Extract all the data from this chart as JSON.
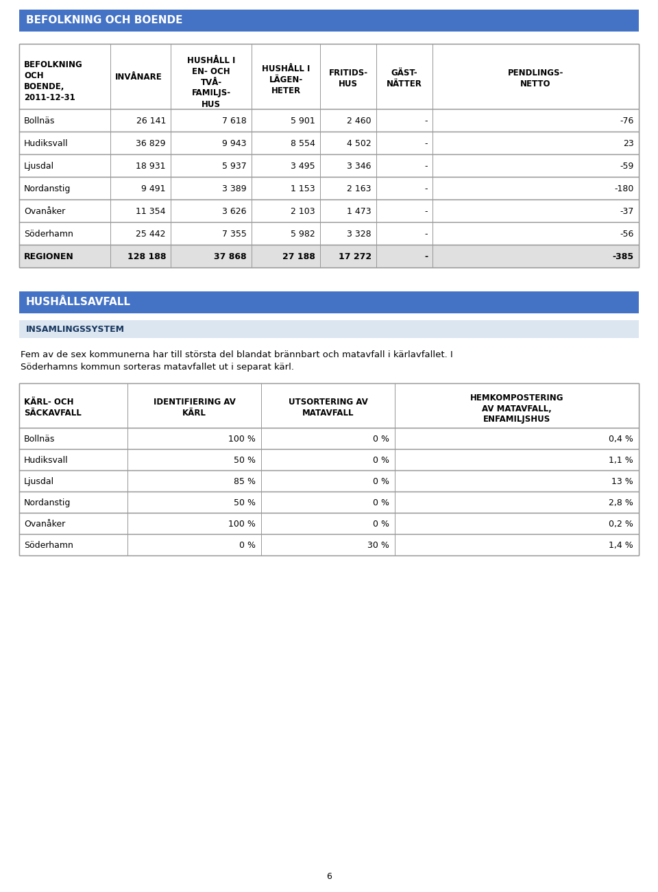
{
  "page_bg": "#ffffff",
  "header1_bg": "#4472c4",
  "header1_text": "BEFOLKNING OCH BOENDE",
  "header1_text_color": "#ffffff",
  "header2_bg": "#4472c4",
  "header2_text": "HUSHÅLLSAVFALL",
  "header2_text_color": "#ffffff",
  "subheader_bg": "#dce6f1",
  "subheader_text": "INSAMLINGSSYSTEM",
  "subheader_text_color": "#17375e",
  "table1_col_headers": [
    "BEFOLKNING\nOCH\nBOENDE,\n2011-12-31",
    "INVÅNARE",
    "HUSHÅLL I\nEN- OCH\nTVÅ-\nFAMILJS-\nHUS",
    "HUSHÅLL I\nLÄGEN-\nHETER",
    "FRITIDS-\nHUS",
    "GÄST-\nNÄTTER",
    "PENDLINGS-\nNETTO"
  ],
  "table1_rows": [
    [
      "Bollnäs",
      "26 141",
      "7 618",
      "5 901",
      "2 460",
      "-",
      "-76"
    ],
    [
      "Hudiksvall",
      "36 829",
      "9 943",
      "8 554",
      "4 502",
      "-",
      "23"
    ],
    [
      "Ljusdal",
      "18 931",
      "5 937",
      "3 495",
      "3 346",
      "-",
      "-59"
    ],
    [
      "Nordanstig",
      "9 491",
      "3 389",
      "1 153",
      "2 163",
      "-",
      "-180"
    ],
    [
      "Ovanåker",
      "11 354",
      "3 626",
      "2 103",
      "1 473",
      "-",
      "-37"
    ],
    [
      "Söderhamn",
      "25 442",
      "7 355",
      "5 982",
      "3 328",
      "-",
      "-56"
    ],
    [
      "REGIONEN",
      "128 188",
      "37 868",
      "27 188",
      "17 272",
      "-",
      "-385"
    ]
  ],
  "paragraph_text1": "Fem av de sex kommunerna har till största del blandat brännbart och matavfall i kärlavfallet. I",
  "paragraph_text2": "Söderhamns kommun sorteras matavfallet ut i separat kärl.",
  "table2_col_headers": [
    "KÄRL- OCH\nSÄCKAVFALL",
    "IDENTIFIERING AV\nKÄRL",
    "UTSORTERING AV\nMATAVFALL",
    "HEMKOMPOSTERING\nAV MATAVFALL,\nENFAMILJSHUS"
  ],
  "table2_rows": [
    [
      "Bollnäs",
      "100 %",
      "0 %",
      "0,4 %"
    ],
    [
      "Hudiksvall",
      "50 %",
      "0 %",
      "1,1 %"
    ],
    [
      "Ljusdal",
      "85 %",
      "0 %",
      "13 %"
    ],
    [
      "Nordanstig",
      "50 %",
      "0 %",
      "2,8 %"
    ],
    [
      "Ovanåker",
      "100 %",
      "0 %",
      "0,2 %"
    ],
    [
      "Söderhamn",
      "0 %",
      "30 %",
      "1,4 %"
    ]
  ],
  "border_color": "#999999",
  "cell_bg_white": "#ffffff",
  "cell_bg_gray": "#e0e0e0",
  "page_number": "6"
}
